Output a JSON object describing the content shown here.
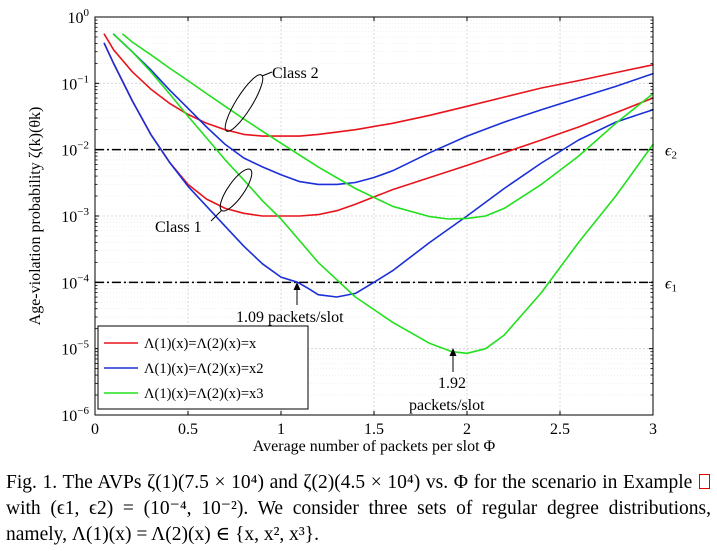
{
  "chart_data": {
    "type": "line",
    "xlabel": "Average number of packets per slot Φ",
    "ylabel": "Age-violation probability ζ(k)(θk)",
    "xlim": [
      0,
      3
    ],
    "ylim": [
      1e-06,
      1
    ],
    "yscale": "log",
    "grid": true,
    "legend_position": "bottom-left",
    "x_ticks": [
      "0",
      "0.5",
      "1",
      "1.5",
      "2",
      "2.5",
      "3"
    ],
    "y_ticks": [
      {
        "base": "10",
        "exp": "0"
      },
      {
        "base": "10",
        "exp": "−1"
      },
      {
        "base": "10",
        "exp": "−2"
      },
      {
        "base": "10",
        "exp": "−3"
      },
      {
        "base": "10",
        "exp": "−4"
      },
      {
        "base": "10",
        "exp": "−5"
      },
      {
        "base": "10",
        "exp": "−6"
      }
    ],
    "series": [
      {
        "name": "Λ(1)(x)=Λ(2)(x)=x",
        "color": "#e8141c",
        "curves": [
          {
            "group": "Class 2",
            "x": [
              0.05,
              0.1,
              0.2,
              0.3,
              0.4,
              0.5,
              0.6,
              0.7,
              0.8,
              0.9,
              1.0,
              1.1,
              1.2,
              1.4,
              1.6,
              1.8,
              2.0,
              2.2,
              2.4,
              2.6,
              2.8,
              3.0
            ],
            "y": [
              0.55,
              0.32,
              0.15,
              0.082,
              0.05,
              0.034,
              0.025,
              0.02,
              0.017,
              0.016,
              0.016,
              0.016,
              0.017,
              0.02,
              0.025,
              0.033,
              0.045,
              0.062,
              0.085,
              0.11,
              0.145,
              0.19
            ]
          },
          {
            "group": "Class 1",
            "x": [
              0.05,
              0.1,
              0.2,
              0.3,
              0.4,
              0.5,
              0.6,
              0.7,
              0.8,
              0.9,
              1.0,
              1.1,
              1.2,
              1.3,
              1.4,
              1.6,
              1.8,
              2.0,
              2.2,
              2.4,
              2.6,
              2.8,
              3.0
            ],
            "y": [
              0.4,
              0.2,
              0.055,
              0.017,
              0.0065,
              0.003,
              0.0018,
              0.0013,
              0.0011,
              0.001,
              0.001,
              0.001,
              0.00105,
              0.0012,
              0.0015,
              0.0025,
              0.0038,
              0.0058,
              0.009,
              0.014,
              0.022,
              0.036,
              0.06
            ]
          }
        ]
      },
      {
        "name": "Λ(1)(x)=Λ(2)(x)=x2",
        "color": "#1a2fd8",
        "curves": [
          {
            "group": "Class 2",
            "x": [
              0.1,
              0.2,
              0.3,
              0.4,
              0.5,
              0.6,
              0.7,
              0.8,
              0.9,
              1.0,
              1.1,
              1.2,
              1.3,
              1.4,
              1.5,
              1.6,
              1.8,
              2.0,
              2.2,
              2.4,
              2.6,
              2.8,
              3.0
            ],
            "y": [
              0.55,
              0.3,
              0.16,
              0.08,
              0.042,
              0.022,
              0.012,
              0.0075,
              0.0055,
              0.0042,
              0.0033,
              0.003,
              0.003,
              0.0032,
              0.0038,
              0.0048,
              0.009,
              0.016,
              0.026,
              0.04,
              0.06,
              0.09,
              0.14
            ]
          },
          {
            "group": "Class 1",
            "x": [
              0.05,
              0.1,
              0.2,
              0.3,
              0.4,
              0.5,
              0.6,
              0.7,
              0.8,
              0.9,
              1.0,
              1.09,
              1.15,
              1.2,
              1.3,
              1.4,
              1.5,
              1.6,
              1.8,
              2.0,
              2.2,
              2.4,
              2.6,
              2.8,
              3.0
            ],
            "y": [
              0.4,
              0.2,
              0.055,
              0.017,
              0.0065,
              0.0028,
              0.0014,
              0.0007,
              0.00035,
              0.00019,
              0.00012,
              0.0001,
              8e-05,
              6.5e-05,
              6e-05,
              6.8e-05,
              0.0001,
              0.00015,
              0.0004,
              0.001,
              0.0026,
              0.0063,
              0.014,
              0.026,
              0.04
            ]
          }
        ]
      },
      {
        "name": "Λ(1)(x)=Λ(2)(x)=x3",
        "color": "#22e01e",
        "curves": [
          {
            "group": "Class 2",
            "x": [
              0.15,
              0.2,
              0.3,
              0.4,
              0.5,
              0.6,
              0.7,
              0.8,
              0.9,
              1.0,
              1.2,
              1.4,
              1.6,
              1.8,
              1.9,
              2.0,
              2.1,
              2.2,
              2.4,
              2.6,
              2.8,
              3.0
            ],
            "y": [
              0.55,
              0.42,
              0.27,
              0.17,
              0.11,
              0.07,
              0.045,
              0.029,
              0.019,
              0.0125,
              0.0055,
              0.0026,
              0.0014,
              0.00098,
              0.0009,
              0.00092,
              0.001,
              0.0013,
              0.003,
              0.008,
              0.025,
              0.07
            ]
          },
          {
            "group": "Class 1",
            "x": [
              0.1,
              0.2,
              0.3,
              0.4,
              0.5,
              0.6,
              0.7,
              0.8,
              0.9,
              1.0,
              1.2,
              1.4,
              1.6,
              1.8,
              1.92,
              2.0,
              2.1,
              2.2,
              2.4,
              2.6,
              2.8,
              3.0
            ],
            "y": [
              0.55,
              0.3,
              0.15,
              0.07,
              0.032,
              0.015,
              0.007,
              0.0035,
              0.0017,
              0.0009,
              0.0002,
              6e-05,
              2.5e-05,
              1.2e-05,
              9e-06,
              8.5e-06,
              1e-05,
              1.6e-05,
              7e-05,
              0.0004,
              0.002,
              0.012
            ]
          }
        ]
      }
    ],
    "reference_lines": [
      {
        "label": "ϵ2",
        "y": 0.01,
        "style": "dash-dot"
      },
      {
        "label": "ϵ1",
        "y": 0.0001,
        "style": "dash-dot"
      }
    ],
    "annotations": [
      {
        "text": "Class 2",
        "target": "upper curves"
      },
      {
        "text": "Class 1",
        "target": "lower curves"
      },
      {
        "text": "1.09 packets/slot",
        "x": 1.09,
        "y": 0.0001
      },
      {
        "text_lines": [
          "1.92",
          "packets/slot"
        ],
        "x": 1.92,
        "y": 9e-06
      }
    ]
  },
  "caption": {
    "fig_label": "Fig. 1.",
    "text_before_ref": "The AVPs ζ(1)(7.5 × 10⁴) and ζ(2)(4.5 × 10⁴) vs. Φ for the scenario in Example",
    "text_after_ref": "with (ϵ1, ϵ2) = (10⁻⁴, 10⁻²). We consider three sets of regular degree distributions, namely, Λ(1)(x) = Λ(2)(x) ∈ {x, x², x³}."
  }
}
